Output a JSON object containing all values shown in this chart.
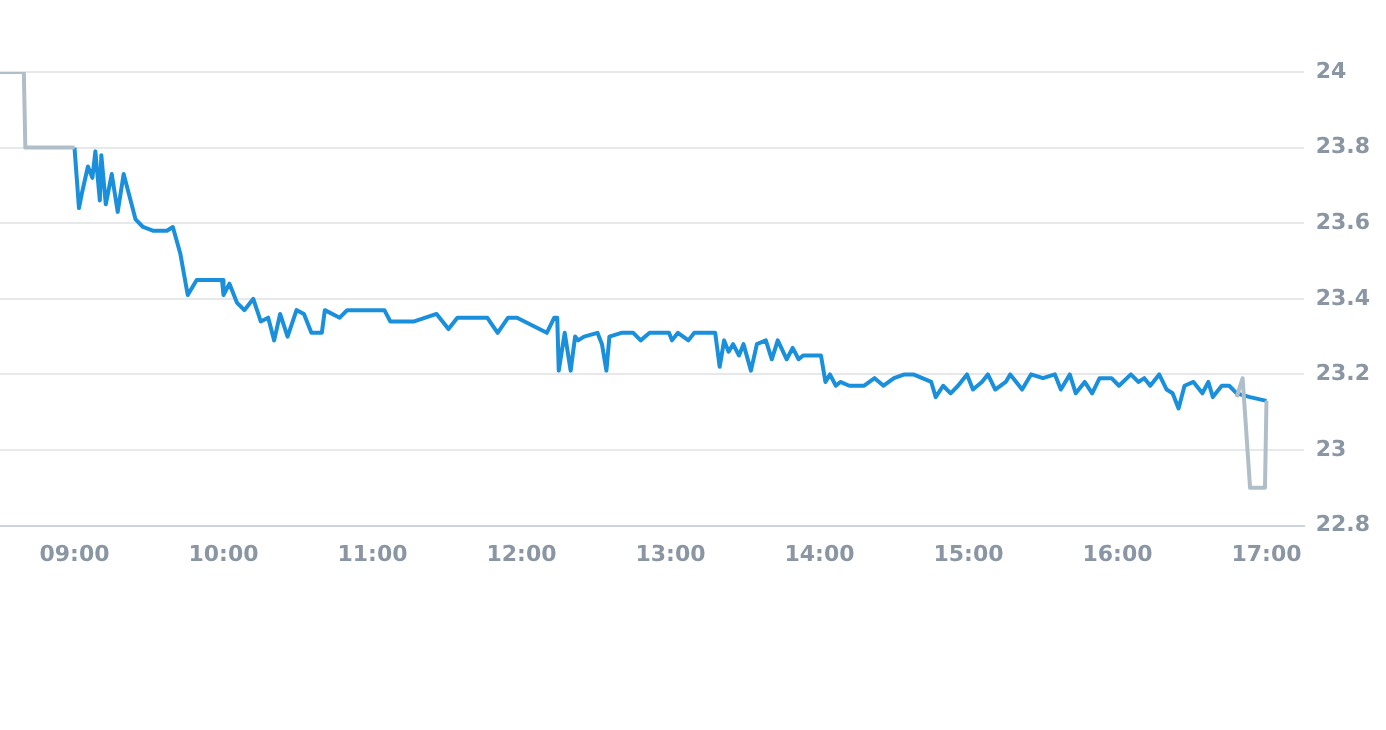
{
  "chart_data": {
    "type": "line",
    "xlim": [
      8.5,
      17.25
    ],
    "ylim": [
      22.8,
      24
    ],
    "xticks": [
      {
        "value": 9,
        "label": "09:00"
      },
      {
        "value": 10,
        "label": "10:00"
      },
      {
        "value": 11,
        "label": "11:00"
      },
      {
        "value": 12,
        "label": "12:00"
      },
      {
        "value": 13,
        "label": "13:00"
      },
      {
        "value": 14,
        "label": "14:00"
      },
      {
        "value": 15,
        "label": "15:00"
      },
      {
        "value": 16,
        "label": "16:00"
      },
      {
        "value": 17,
        "label": "17:00"
      }
    ],
    "yticks": [
      22.8,
      23,
      23.2,
      23.4,
      23.6,
      23.8,
      24
    ],
    "grid": "y",
    "marker": "none",
    "line_style": "solid",
    "legend": false,
    "series": [
      {
        "color": "#b0bec9",
        "x": [
          8.5,
          8.66,
          8.67,
          9.0
        ],
        "values": [
          24,
          24,
          23.8,
          23.8
        ]
      },
      {
        "color": "#b0bec9",
        "x": [
          16.8,
          16.84,
          16.89,
          16.99,
          17.0
        ],
        "values": [
          23.14,
          23.19,
          22.9,
          22.9,
          23.13
        ]
      },
      {
        "color": "#1a90dc",
        "x": [
          9.0,
          9.03,
          9.05,
          9.09,
          9.12,
          9.14,
          9.17,
          9.18,
          9.21,
          9.25,
          9.29,
          9.33,
          9.37,
          9.41,
          9.46,
          9.53,
          9.62,
          9.66,
          9.71,
          9.76,
          9.82,
          9.99,
          10.0,
          10.04,
          10.09,
          10.14,
          10.2,
          10.25,
          10.3,
          10.34,
          10.38,
          10.43,
          10.49,
          10.54,
          10.59,
          10.66,
          10.68,
          10.78,
          10.83,
          11.08,
          11.12,
          11.28,
          11.43,
          11.49,
          11.51,
          11.57,
          11.77,
          11.84,
          11.91,
          11.97,
          12.17,
          12.22,
          12.24,
          12.25,
          12.29,
          12.33,
          12.36,
          12.38,
          12.42,
          12.51,
          12.54,
          12.57,
          12.59,
          12.67,
          12.75,
          12.8,
          12.86,
          12.99,
          13.01,
          13.05,
          13.12,
          13.16,
          13.3,
          13.33,
          13.36,
          13.39,
          13.42,
          13.46,
          13.49,
          13.54,
          13.58,
          13.64,
          13.68,
          13.72,
          13.78,
          13.82,
          13.86,
          13.89,
          14.01,
          14.04,
          14.07,
          14.11,
          14.14,
          14.2,
          14.3,
          14.37,
          14.43,
          14.5,
          14.57,
          14.63,
          14.75,
          14.78,
          14.83,
          14.88,
          14.93,
          14.99,
          15.03,
          15.09,
          15.13,
          15.18,
          15.25,
          15.28,
          15.36,
          15.42,
          15.5,
          15.58,
          15.62,
          15.68,
          15.72,
          15.78,
          15.83,
          15.88,
          15.96,
          16.01,
          16.09,
          16.14,
          16.18,
          16.22,
          16.28,
          16.33,
          16.37,
          16.41,
          16.45,
          16.51,
          16.57,
          16.61,
          16.64,
          16.7,
          16.75,
          16.8,
          16.89,
          17.0
        ],
        "values": [
          23.8,
          23.64,
          23.68,
          23.75,
          23.72,
          23.79,
          23.66,
          23.78,
          23.65,
          23.73,
          23.63,
          23.73,
          23.67,
          23.61,
          23.59,
          23.58,
          23.58,
          23.59,
          23.52,
          23.41,
          23.45,
          23.45,
          23.41,
          23.44,
          23.39,
          23.37,
          23.4,
          23.34,
          23.35,
          23.29,
          23.36,
          23.3,
          23.37,
          23.36,
          23.31,
          23.31,
          23.37,
          23.35,
          23.37,
          23.37,
          23.34,
          23.34,
          23.36,
          23.33,
          23.32,
          23.35,
          23.35,
          23.31,
          23.35,
          23.35,
          23.31,
          23.35,
          23.35,
          23.21,
          23.31,
          23.21,
          23.3,
          23.29,
          23.3,
          23.31,
          23.28,
          23.21,
          23.3,
          23.31,
          23.31,
          23.29,
          23.31,
          23.31,
          23.29,
          23.31,
          23.29,
          23.31,
          23.31,
          23.22,
          23.29,
          23.26,
          23.28,
          23.25,
          23.28,
          23.21,
          23.28,
          23.29,
          23.24,
          23.29,
          23.24,
          23.27,
          23.24,
          23.25,
          23.25,
          23.18,
          23.2,
          23.17,
          23.18,
          23.17,
          23.17,
          23.19,
          23.17,
          23.19,
          23.2,
          23.2,
          23.18,
          23.14,
          23.17,
          23.15,
          23.17,
          23.2,
          23.16,
          23.18,
          23.2,
          23.16,
          23.18,
          23.2,
          23.16,
          23.2,
          23.19,
          23.2,
          23.16,
          23.2,
          23.15,
          23.18,
          23.15,
          23.19,
          23.19,
          23.17,
          23.2,
          23.18,
          23.19,
          23.17,
          23.2,
          23.16,
          23.15,
          23.11,
          23.17,
          23.18,
          23.15,
          23.18,
          23.14,
          23.17,
          23.17,
          23.15,
          23.14,
          23.13
        ]
      }
    ]
  }
}
